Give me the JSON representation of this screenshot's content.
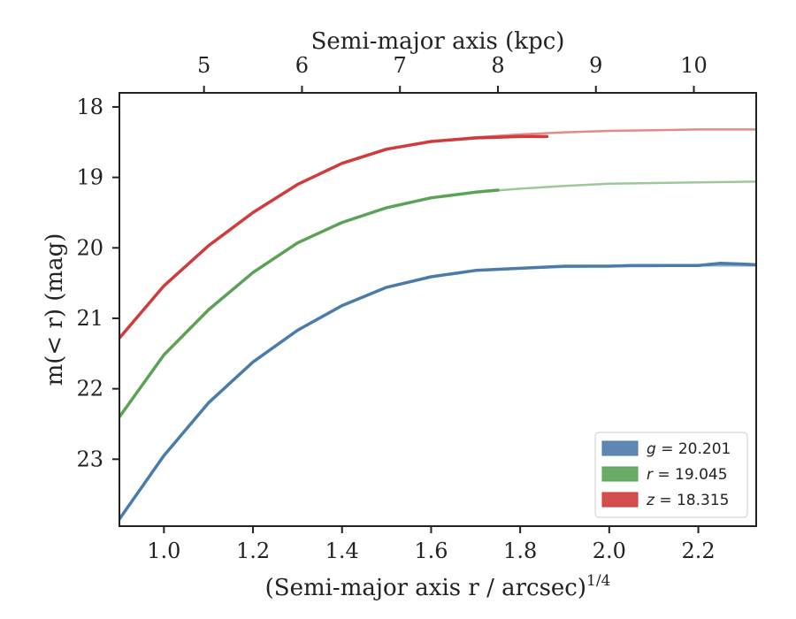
{
  "chart_data": {
    "type": "line",
    "title": "",
    "xlabel": "(Semi-major axis r / arcsec)",
    "xlabel_exponent": "1/4",
    "x2label": "Semi-major axis (kpc)",
    "ylabel": "m(< r) (mag)",
    "xlim": [
      0.9,
      2.33
    ],
    "ylim": [
      23.95,
      17.8
    ],
    "y_inverted": true,
    "xticks": [
      1.0,
      1.2,
      1.4,
      1.6,
      1.8,
      2.0,
      2.2
    ],
    "xtick_labels": [
      "1.0",
      "1.2",
      "1.4",
      "1.6",
      "1.8",
      "2.0",
      "2.2"
    ],
    "yticks": [
      18,
      19,
      20,
      21,
      22,
      23
    ],
    "ytick_labels": [
      "18",
      "19",
      "20",
      "21",
      "22",
      "23"
    ],
    "x2ticks": [
      {
        "label": "5",
        "x": 1.09
      },
      {
        "label": "6",
        "x": 1.31
      },
      {
        "label": "7",
        "x": 1.53
      },
      {
        "label": "8",
        "x": 1.75
      },
      {
        "label": "9",
        "x": 1.97
      },
      {
        "label": "10",
        "x": 2.19
      }
    ],
    "grid": false,
    "legend_position": "lower-right",
    "series": [
      {
        "name": "g = 20.201",
        "legend_var": "g",
        "legend_val": "= 20.201",
        "color": "#4a7bab",
        "x": [
          0.9,
          1.0,
          1.1,
          1.2,
          1.3,
          1.4,
          1.5,
          1.6,
          1.7,
          1.8,
          1.9,
          2.0,
          2.05,
          2.1,
          2.15,
          2.2,
          2.25,
          2.3,
          2.33
        ],
        "values": [
          23.85,
          22.95,
          22.2,
          21.62,
          21.17,
          20.82,
          20.56,
          20.41,
          20.32,
          20.29,
          20.26,
          20.26,
          20.25,
          20.25,
          20.25,
          20.25,
          20.22,
          20.23,
          20.24
        ],
        "model_x": [
          0.9,
          1.0,
          1.1,
          1.2,
          1.3,
          1.4,
          1.5,
          1.6,
          1.7,
          1.8,
          1.9,
          2.0,
          2.1,
          2.2,
          2.33
        ],
        "model_values": [
          23.85,
          22.95,
          22.2,
          21.62,
          21.17,
          20.82,
          20.56,
          20.41,
          20.32,
          20.29,
          20.27,
          20.26,
          20.26,
          20.25,
          20.25
        ]
      },
      {
        "name": "r = 19.045",
        "legend_var": "r",
        "legend_val": "= 19.045",
        "color": "#5aa356",
        "x": [
          0.9,
          1.0,
          1.1,
          1.2,
          1.3,
          1.4,
          1.5,
          1.6,
          1.7,
          1.75
        ],
        "values": [
          22.4,
          21.52,
          20.88,
          20.35,
          19.93,
          19.64,
          19.43,
          19.29,
          19.21,
          19.18
        ],
        "model_x": [
          0.9,
          1.0,
          1.1,
          1.2,
          1.3,
          1.4,
          1.5,
          1.6,
          1.7,
          1.8,
          1.9,
          2.0,
          2.1,
          2.2,
          2.33
        ],
        "model_values": [
          22.4,
          21.52,
          20.88,
          20.35,
          19.93,
          19.64,
          19.43,
          19.29,
          19.21,
          19.16,
          19.12,
          19.09,
          19.08,
          19.07,
          19.06
        ]
      },
      {
        "name": "z = 18.315",
        "legend_var": "z",
        "legend_val": "= 18.315",
        "color": "#d03b3b",
        "x": [
          0.9,
          1.0,
          1.1,
          1.2,
          1.3,
          1.4,
          1.5,
          1.6,
          1.7,
          1.8,
          1.86
        ],
        "values": [
          21.28,
          20.54,
          19.97,
          19.5,
          19.1,
          18.8,
          18.6,
          18.49,
          18.44,
          18.42,
          18.42
        ],
        "model_x": [
          0.9,
          1.0,
          1.1,
          1.2,
          1.3,
          1.4,
          1.5,
          1.6,
          1.7,
          1.8,
          1.9,
          2.0,
          2.1,
          2.2,
          2.33
        ],
        "model_values": [
          21.28,
          20.54,
          19.97,
          19.5,
          19.1,
          18.8,
          18.6,
          18.49,
          18.43,
          18.39,
          18.36,
          18.34,
          18.33,
          18.32,
          18.32
        ]
      }
    ]
  }
}
